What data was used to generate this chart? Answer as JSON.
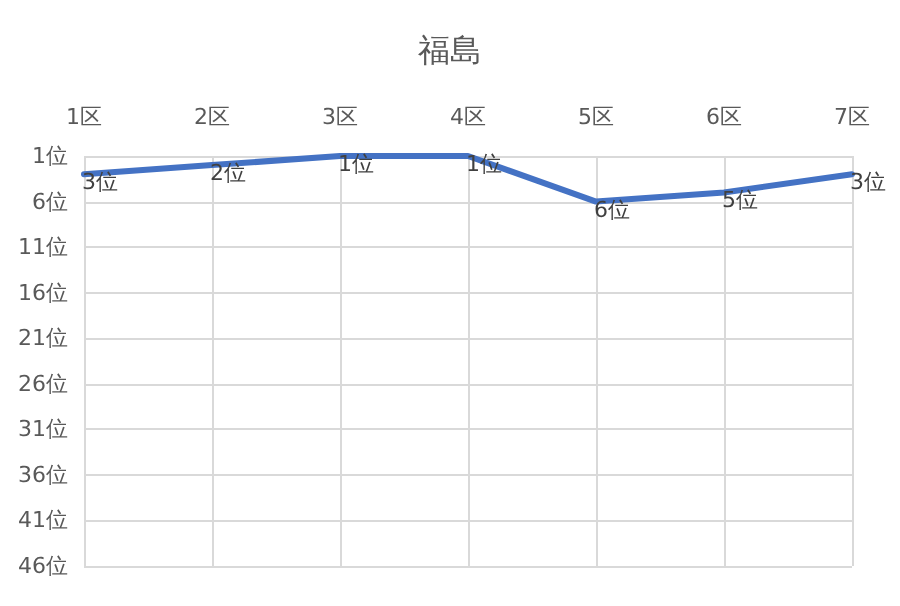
{
  "chart_data": {
    "type": "line",
    "title": "福島",
    "categories": [
      "1区",
      "2区",
      "3区",
      "4区",
      "5区",
      "6区",
      "7区"
    ],
    "series": [
      {
        "color": "#4472c4",
        "values": [
          3,
          2,
          1,
          1,
          6,
          5,
          3
        ],
        "value_labels": [
          "3位",
          "2位",
          "1位",
          "1位",
          "6位",
          "5位",
          "3位"
        ]
      }
    ],
    "ylim": [
      46,
      1
    ],
    "yticks": [
      {
        "value": 1,
        "label": "1位"
      },
      {
        "value": 6,
        "label": "6位"
      },
      {
        "value": 11,
        "label": "11位"
      },
      {
        "value": 16,
        "label": "16位"
      },
      {
        "value": 21,
        "label": "21位"
      },
      {
        "value": 26,
        "label": "26位"
      },
      {
        "value": 31,
        "label": "31位"
      },
      {
        "value": 36,
        "label": "36位"
      },
      {
        "value": 41,
        "label": "41位"
      },
      {
        "value": 46,
        "label": "46位"
      }
    ],
    "grid": true,
    "marker": "none",
    "line_style": "solid"
  }
}
